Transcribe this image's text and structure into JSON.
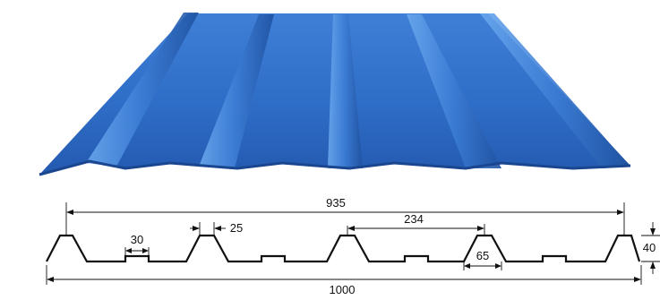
{
  "product": {
    "sheet_color": "#2f6ec8",
    "sheet_highlight": "#5a9be6",
    "sheet_shadow": "#1d4f9e"
  },
  "profile": {
    "line_color": "#111111",
    "dimensions": {
      "effective_width": "935",
      "rib_pitch": "234",
      "rib_top_width": "25",
      "minor_rib_width": "30",
      "rib_base_width": "65",
      "rib_height": "40",
      "total_width": "1000"
    }
  }
}
